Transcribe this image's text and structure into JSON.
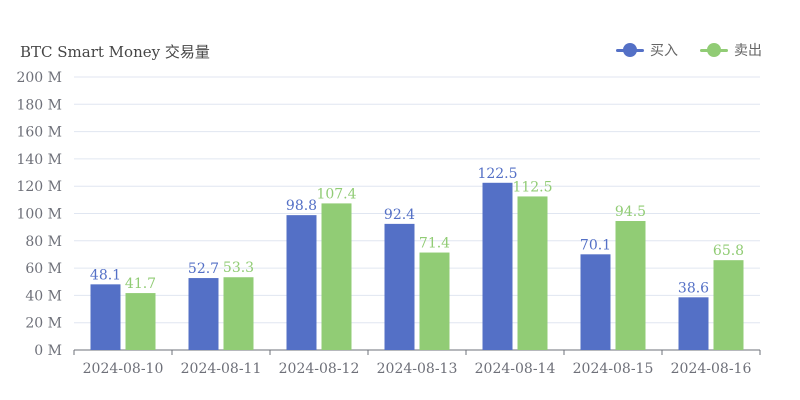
{
  "title": "BTC Smart Money 交易量",
  "legend": [
    {
      "label": "买入",
      "color": "#5470c6"
    },
    {
      "label": "卖出",
      "color": "#91cc75"
    }
  ],
  "chart_data": {
    "type": "bar",
    "title": "BTC Smart Money 交易量",
    "categories": [
      "2024-08-10",
      "2024-08-11",
      "2024-08-12",
      "2024-08-13",
      "2024-08-14",
      "2024-08-15",
      "2024-08-16"
    ],
    "series": [
      {
        "name": "买入",
        "color": "#5470c6",
        "values": [
          48.1,
          52.7,
          98.8,
          92.4,
          122.5,
          70.1,
          38.6
        ]
      },
      {
        "name": "卖出",
        "color": "#91cc75",
        "values": [
          41.7,
          53.3,
          107.4,
          71.4,
          112.5,
          94.5,
          65.8
        ]
      }
    ],
    "y_ticks": [
      "0 M",
      "20 M",
      "40 M",
      "60 M",
      "80 M",
      "100 M",
      "120 M",
      "140 M",
      "160 M",
      "180 M",
      "200 M"
    ],
    "ylim": [
      0,
      200
    ],
    "grid": true,
    "legend_position": "top-right",
    "data_labels": true
  }
}
